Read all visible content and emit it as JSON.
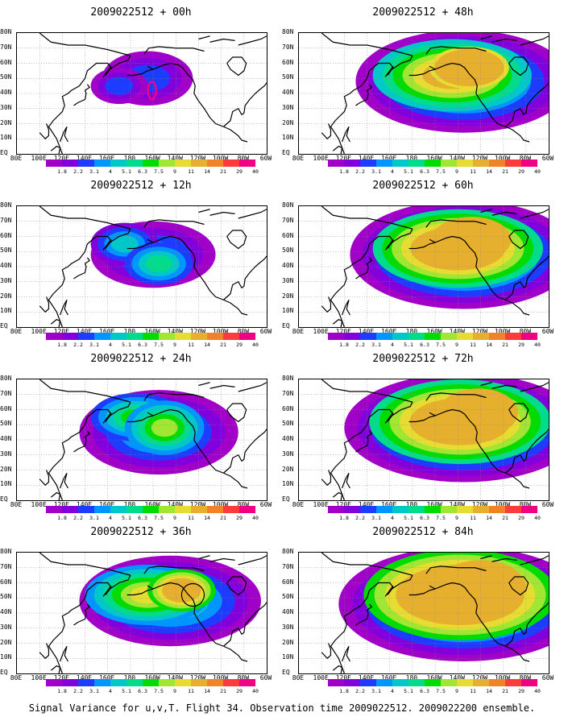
{
  "panels": [
    {
      "title": "2009022512 + 00h",
      "level": 0
    },
    {
      "title": "2009022512 + 48h",
      "level": 4
    },
    {
      "title": "2009022512 + 12h",
      "level": 1
    },
    {
      "title": "2009022512 + 60h",
      "level": 5
    },
    {
      "title": "2009022512 + 24h",
      "level": 2
    },
    {
      "title": "2009022512 + 72h",
      "level": 6
    },
    {
      "title": "2009022512 + 36h",
      "level": 3
    },
    {
      "title": "2009022512 + 84h",
      "level": 7
    }
  ],
  "lat_labels": [
    "80N",
    "70N",
    "60N",
    "50N",
    "40N",
    "30N",
    "20N",
    "10N",
    "EQ"
  ],
  "lon_labels": [
    "80E",
    "100E",
    "120E",
    "140E",
    "160E",
    "180",
    "160W",
    "140W",
    "120W",
    "100W",
    "80W",
    "60W"
  ],
  "colorbar": {
    "labels": [
      "1.8",
      "2.2",
      "3.1",
      "4",
      "5.1",
      "6.3",
      "7.5",
      "9",
      "11",
      "14",
      "21",
      "29",
      "40"
    ],
    "colors": [
      "#a000c8",
      "#8200dc",
      "#1e3cff",
      "#0096ff",
      "#00c8c8",
      "#00dc8c",
      "#00dc00",
      "#a0e632",
      "#e6dc32",
      "#e6af2d",
      "#f08228",
      "#fa3c3c",
      "#f00082"
    ]
  },
  "caption": "Signal Variance for u,v,T. Flight 34. Observation time 2009022512. 2009022200 ensemble."
}
